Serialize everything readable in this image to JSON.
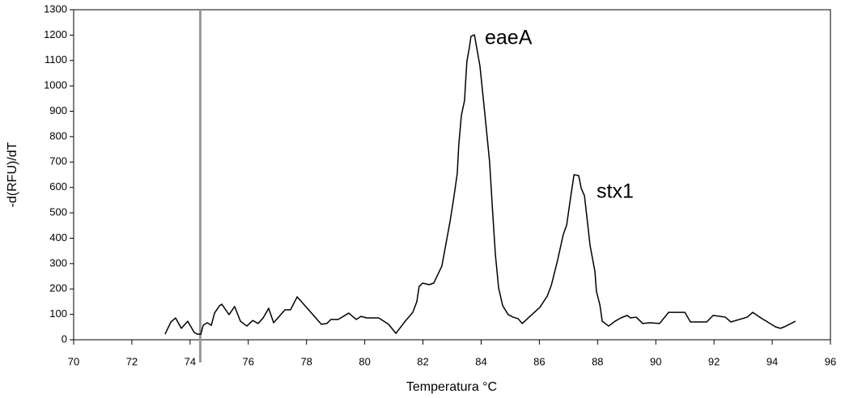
{
  "chart_data": {
    "type": "line",
    "xlabel": "Temperatura °C",
    "ylabel": "-d(RFU)/dT",
    "annotations": [
      "eaeA",
      "stx1"
    ],
    "xlim": [
      70,
      96
    ],
    "xticks": [
      70,
      72,
      74,
      76,
      78,
      80,
      82,
      84,
      86,
      88,
      90,
      92,
      94,
      96
    ],
    "ylim": [
      0,
      1300
    ],
    "yticks": [
      0,
      100,
      200,
      300,
      400,
      500,
      600,
      700,
      800,
      900,
      1000,
      1100,
      1200,
      1300
    ],
    "reference_line_x": 74.35,
    "reference_line_color": "#999999",
    "series": [
      {
        "color": "#000000",
        "x": [
          73.14,
          73.34,
          73.5,
          73.7,
          73.92,
          74.14,
          74.25,
          74.37,
          74.45,
          74.59,
          74.73,
          74.84,
          75.01,
          75.09,
          75.34,
          75.53,
          75.73,
          75.95,
          76.15,
          76.34,
          76.51,
          76.7,
          76.87,
          77.26,
          77.45,
          77.68,
          78.51,
          78.7,
          78.84,
          79.09,
          79.45,
          79.71,
          79.87,
          80.07,
          80.48,
          80.82,
          81.07,
          81.37,
          81.65,
          81.79,
          81.87,
          81.99,
          82.21,
          82.37,
          82.65,
          82.93,
          83.07,
          83.18,
          83.23,
          83.32,
          83.43,
          83.46,
          83.51,
          83.6,
          83.65,
          83.77,
          83.96,
          84.15,
          84.29,
          84.4,
          84.49,
          84.6,
          84.74,
          84.93,
          85.1,
          85.27,
          85.41,
          85.8,
          86.02,
          86.27,
          86.41,
          86.63,
          86.82,
          86.94,
          87.07,
          87.19,
          87.35,
          87.44,
          87.55,
          87.66,
          87.74,
          87.91,
          87.96,
          88.08,
          88.16,
          88.38,
          88.6,
          88.8,
          89.02,
          89.13,
          89.33,
          89.55,
          89.8,
          90.13,
          90.44,
          91.0,
          91.19,
          91.75,
          91.97,
          92.39,
          92.58,
          93.14,
          93.33,
          93.61,
          94.11,
          94.28,
          94.42,
          94.8
        ],
        "values": [
          22,
          70,
          86,
          45,
          73,
          29,
          22,
          22,
          57,
          67,
          57,
          105,
          134,
          140,
          99,
          131,
          73,
          54,
          76,
          64,
          86,
          124,
          67,
          118,
          118,
          169,
          61,
          64,
          80,
          80,
          105,
          80,
          92,
          86,
          86,
          61,
          25,
          70,
          108,
          150,
          210,
          223,
          217,
          223,
          290,
          465,
          567,
          656,
          765,
          883,
          943,
          1004,
          1096,
          1154,
          1195,
          1201,
          1077,
          864,
          701,
          494,
          335,
          204,
          134,
          99,
          89,
          83,
          64,
          105,
          128,
          172,
          214,
          315,
          414,
          453,
          558,
          650,
          647,
          596,
          567,
          456,
          373,
          268,
          191,
          137,
          73,
          54,
          73,
          86,
          96,
          86,
          89,
          64,
          67,
          64,
          108,
          108,
          70,
          70,
          96,
          89,
          70,
          89,
          108,
          86,
          51,
          45,
          51,
          73
        ]
      }
    ]
  }
}
